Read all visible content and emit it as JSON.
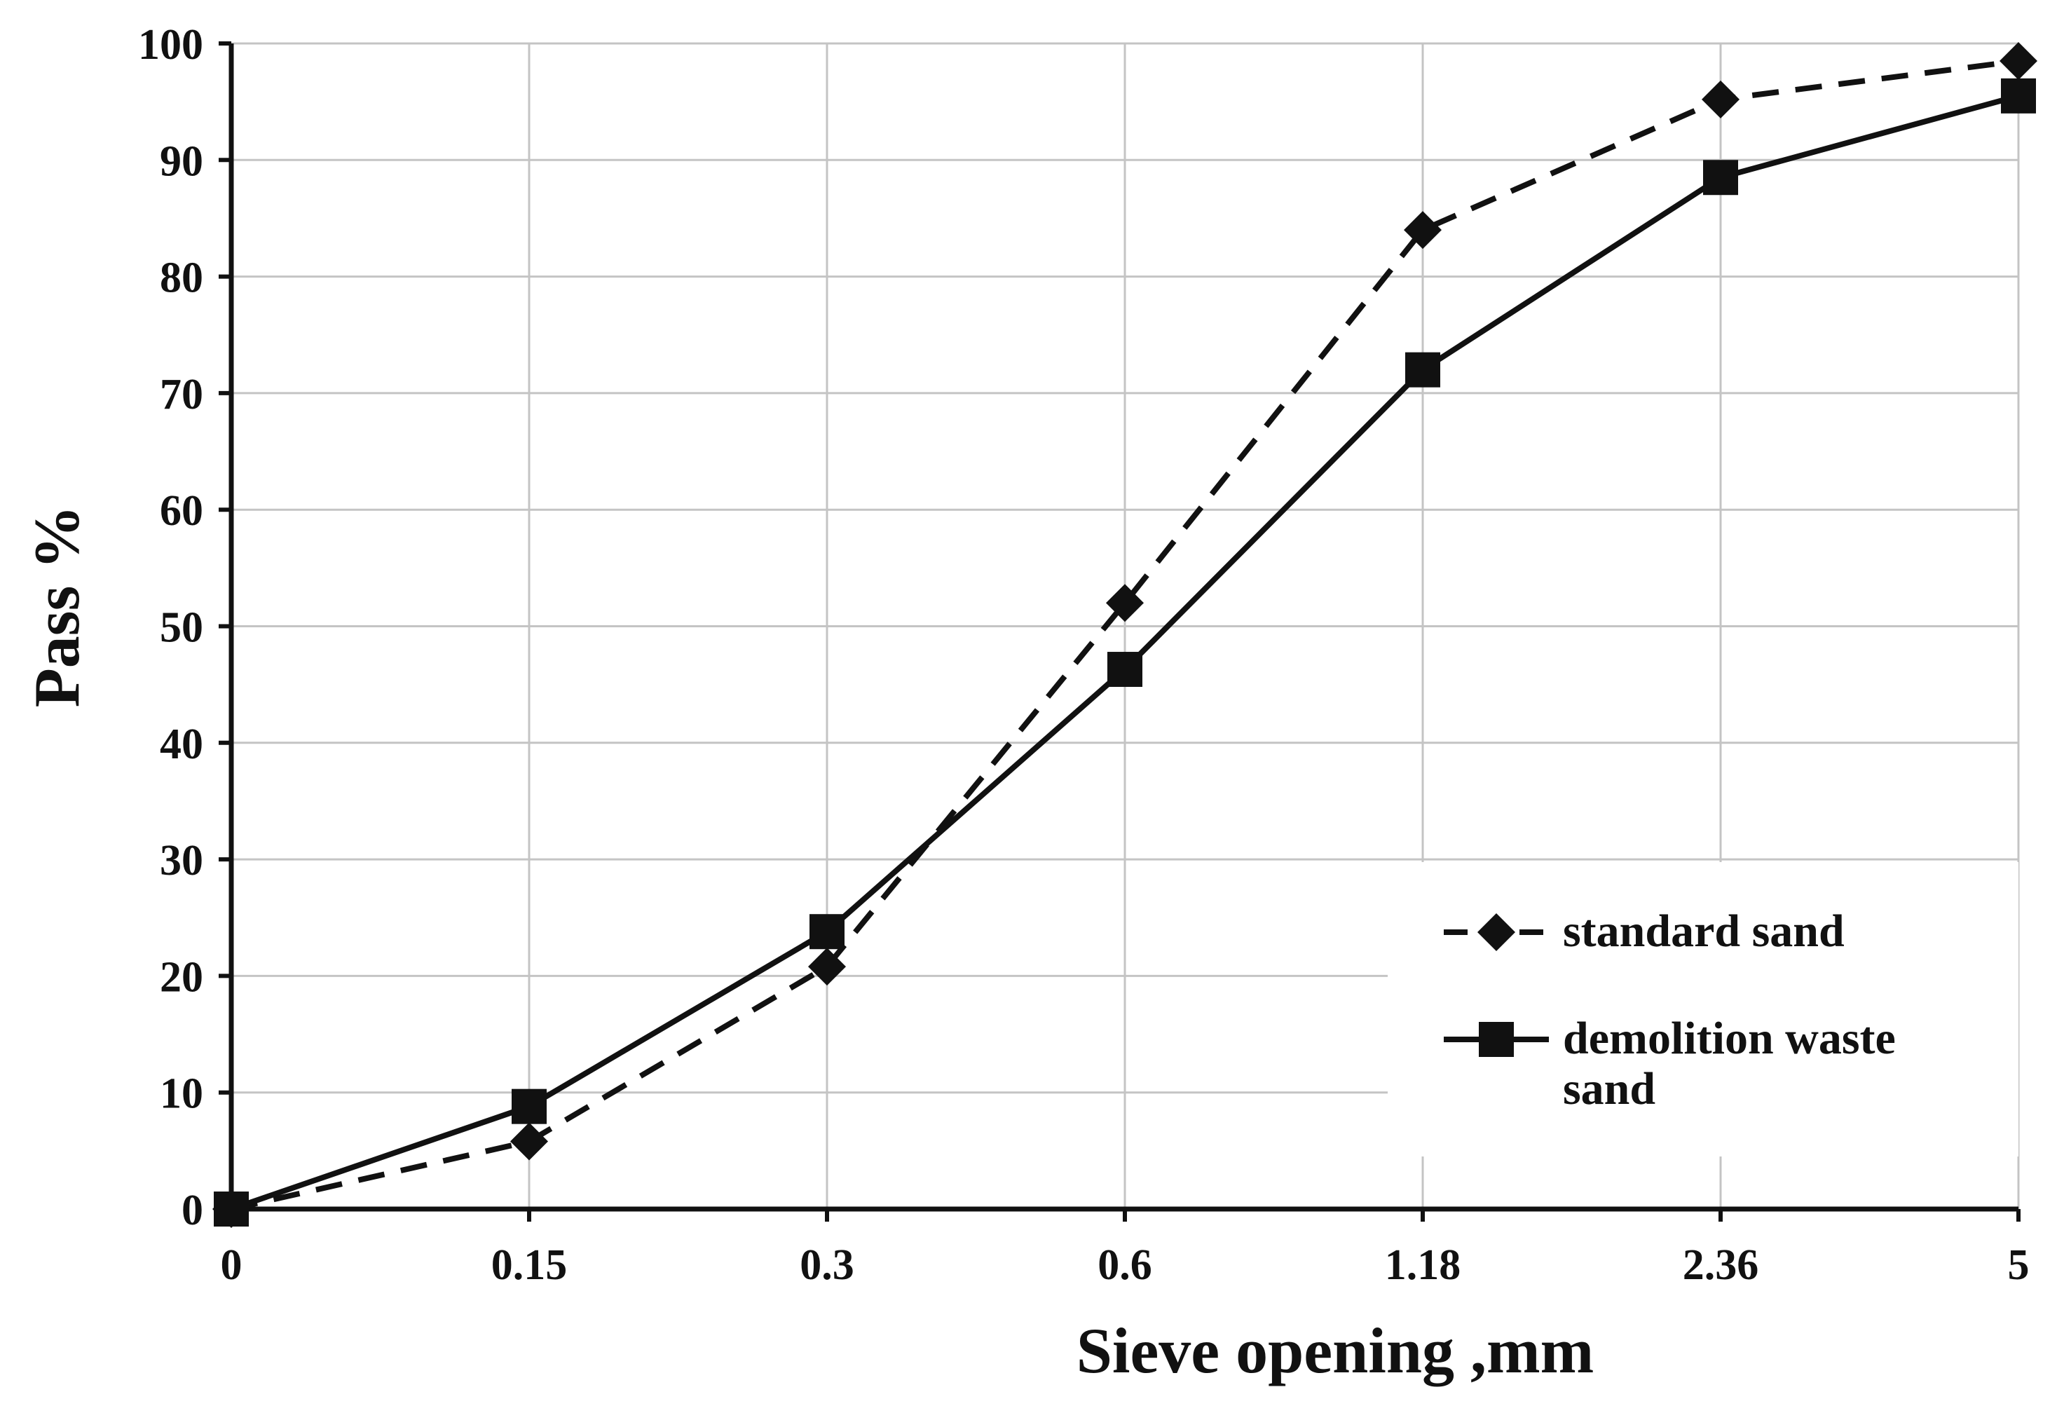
{
  "chart_data": {
    "type": "line",
    "title": "",
    "xlabel": "Sieve opening ,mm",
    "ylabel": "Pass %",
    "categories": [
      "0",
      "0.15",
      "0.3",
      "0.6",
      "1.18",
      "2.36",
      "5"
    ],
    "ylim": [
      0,
      100
    ],
    "yticks": [
      "0",
      "10",
      "20",
      "30",
      "40",
      "50",
      "60",
      "70",
      "80",
      "90",
      "100"
    ],
    "grid": true,
    "legend_position": "bottom-right",
    "series": [
      {
        "name": "standard sand",
        "values": [
          0,
          5.8,
          20.8,
          52,
          84,
          95.2,
          98.5
        ],
        "line_style": "dashed",
        "marker": "diamond",
        "color": "#111111"
      },
      {
        "name": "demolition waste sand",
        "name_lines": [
          "demolition waste",
          "sand"
        ],
        "values": [
          0,
          8.8,
          23.8,
          46.3,
          72,
          88.5,
          95.5
        ],
        "line_style": "solid",
        "marker": "square",
        "color": "#111111"
      }
    ]
  }
}
